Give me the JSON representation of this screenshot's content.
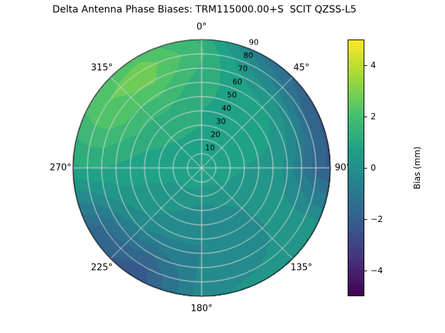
{
  "title": "Delta Antenna Phase Biases: TRM115000.00+S  SCIT QZSS-L5",
  "polar": {
    "angular_tick_labels": [
      {
        "az": 0,
        "label": "0°"
      },
      {
        "az": 45,
        "label": "45°"
      },
      {
        "az": 90,
        "label": "90°"
      },
      {
        "az": 135,
        "label": "135°"
      },
      {
        "az": 180,
        "label": "180°"
      },
      {
        "az": 225,
        "label": "225°"
      },
      {
        "az": 270,
        "label": "270°"
      },
      {
        "az": 315,
        "label": "315°"
      }
    ],
    "radial_tick_labels": [
      {
        "r": 10,
        "label": "10"
      },
      {
        "r": 20,
        "label": "20"
      },
      {
        "r": 30,
        "label": "30"
      },
      {
        "r": 40,
        "label": "40"
      },
      {
        "r": 50,
        "label": "50"
      },
      {
        "r": 60,
        "label": "60"
      },
      {
        "r": 70,
        "label": "70"
      },
      {
        "r": 80,
        "label": "80"
      },
      {
        "r": 90,
        "label": "90"
      }
    ],
    "radial_label_azimuth_deg": 22.5,
    "r_max": 90,
    "grid_color": "#dcdcdc",
    "spine_color": "#000000"
  },
  "colorbar": {
    "label": "Bias (mm)",
    "min": -5,
    "max": 5,
    "tick_labels": [
      {
        "value": 4,
        "label": "4"
      },
      {
        "value": 2,
        "label": "2"
      },
      {
        "value": 0,
        "label": "0"
      },
      {
        "value": -2,
        "label": "−2"
      },
      {
        "value": -4,
        "label": "−4"
      }
    ],
    "colormap": "viridis",
    "stops": [
      "#440154",
      "#46327e",
      "#365c8d",
      "#277f8e",
      "#1fa187",
      "#4ac16d",
      "#a0da39",
      "#fde725"
    ]
  },
  "chart_data": {
    "type": "heatmap",
    "projection": "polar",
    "title": "Delta Antenna Phase Biases: TRM115000.00+S  SCIT QZSS-L5",
    "colorbar_label": "Bias (mm)",
    "clim": [
      -5,
      5
    ],
    "contour_level_step": 0.5,
    "azimuth_deg": [
      0,
      30,
      60,
      90,
      120,
      150,
      180,
      210,
      240,
      270,
      300,
      330
    ],
    "radius": [
      0,
      10,
      20,
      30,
      40,
      50,
      60,
      70,
      80,
      90
    ],
    "values_bias_mm": [
      [
        0.8,
        0.8,
        0.9,
        1.0,
        1.0,
        1.1,
        1.2,
        1.4,
        1.6,
        1.4
      ],
      [
        0.8,
        0.8,
        0.8,
        0.8,
        0.8,
        0.8,
        0.7,
        0.3,
        -0.4,
        -1.2
      ],
      [
        0.8,
        0.8,
        0.8,
        0.7,
        0.7,
        0.6,
        0.4,
        -0.3,
        -1.4,
        -2.1
      ],
      [
        0.8,
        0.7,
        0.6,
        0.5,
        0.4,
        0.3,
        -0.2,
        -1.0,
        -1.8,
        -2.1
      ],
      [
        0.8,
        0.7,
        0.5,
        0.3,
        0.2,
        0.2,
        0.2,
        0.3,
        0.4,
        0.5
      ],
      [
        0.8,
        0.6,
        0.3,
        0.0,
        -0.2,
        -0.3,
        -0.3,
        -0.2,
        0.0,
        0.3
      ],
      [
        0.8,
        0.6,
        0.2,
        -0.2,
        -0.4,
        -0.5,
        -0.5,
        -0.4,
        -0.3,
        -0.2
      ],
      [
        0.8,
        0.7,
        0.4,
        0.1,
        -0.1,
        -0.3,
        -0.8,
        -1.5,
        -2.1,
        -2.3
      ],
      [
        0.8,
        0.7,
        0.5,
        0.4,
        0.3,
        0.2,
        -0.2,
        -0.8,
        -1.5,
        -1.8
      ],
      [
        0.8,
        0.8,
        0.7,
        0.7,
        0.7,
        0.8,
        0.9,
        1.0,
        1.0,
        0.9
      ],
      [
        0.8,
        0.8,
        0.9,
        1.0,
        1.2,
        1.5,
        1.9,
        2.3,
        2.4,
        2.2
      ],
      [
        0.8,
        0.8,
        0.9,
        1.1,
        1.3,
        1.6,
        2.1,
        2.6,
        2.8,
        2.3
      ]
    ]
  }
}
